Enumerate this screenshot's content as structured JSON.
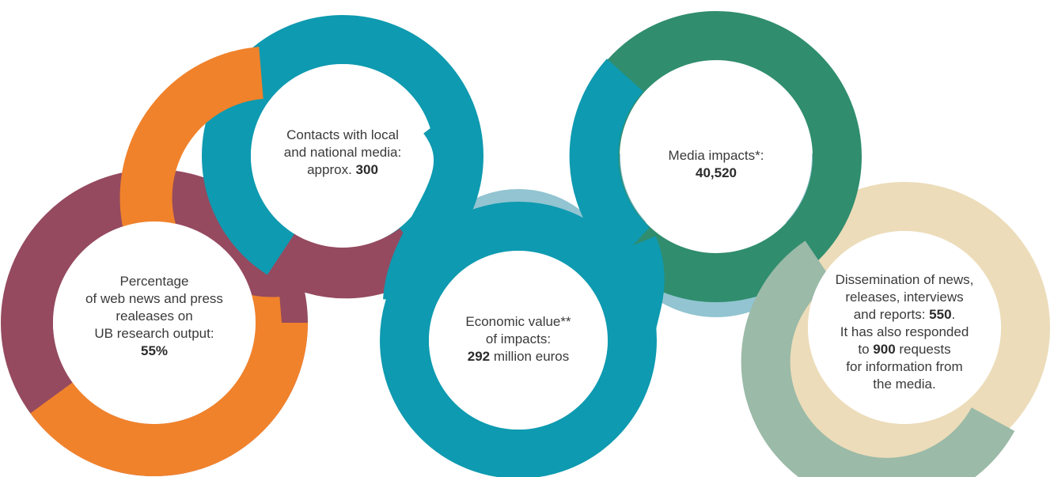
{
  "colors": {
    "plum": "#954a5f",
    "orange": "#f0822b",
    "teal": "#0e9ab0",
    "light_blue": "#92c4d1",
    "green": "#308d6e",
    "sand": "#ecdcb9",
    "sage": "#9bbaa8"
  },
  "items": [
    {
      "lines": [
        {
          "text": "Percentage"
        },
        {
          "text": "of web news and press"
        },
        {
          "text": "realeases on"
        },
        {
          "text": "UB research output:"
        },
        {
          "value": "55%",
          "text": ""
        }
      ]
    },
    {
      "lines": [
        {
          "text": "Contacts with local"
        },
        {
          "text": "and national media:"
        },
        {
          "text": "approx. ",
          "value": "300"
        }
      ]
    },
    {
      "lines": [
        {
          "text": "Economic value**"
        },
        {
          "text": "of impacts:"
        },
        {
          "value": "292",
          "text": " million euros"
        }
      ]
    },
    {
      "lines": [
        {
          "text": "Media impacts*:"
        },
        {
          "value": "40,520",
          "text": ""
        }
      ]
    },
    {
      "lines": [
        {
          "text": "Dissemination of news,"
        },
        {
          "text": "releases, interviews"
        },
        {
          "text": "and reports: ",
          "value": "550",
          "suffix": "."
        },
        {
          "text": "It has also responded"
        },
        {
          "text": "to ",
          "value": "900",
          "suffix": " requests"
        },
        {
          "text": "for information from"
        },
        {
          "text": "the media."
        }
      ]
    }
  ]
}
